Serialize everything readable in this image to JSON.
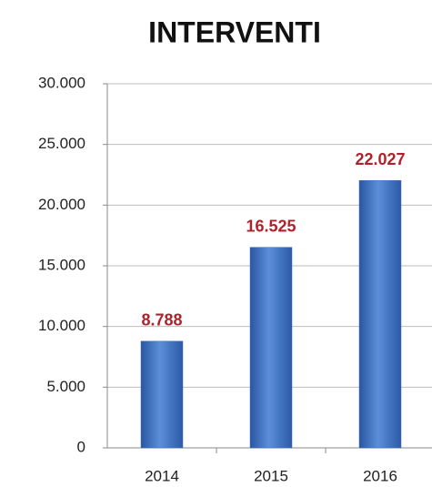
{
  "chart_data": {
    "type": "bar",
    "title": "INTERVENTI",
    "categories": [
      "2014",
      "2015",
      "2016"
    ],
    "values": [
      8788,
      16525,
      22027
    ],
    "value_labels": [
      "8.788",
      "16.525",
      "22.027"
    ],
    "color": "#3a6fc0",
    "ylim": [
      0,
      30000
    ],
    "yticks": [
      0,
      {
        "value": 5000,
        "label": "5.000"
      },
      {
        "value": 10000,
        "label": "10.000"
      },
      {
        "value": 15000,
        "label": "15.000"
      },
      {
        "value": 20000,
        "label": "20.000"
      },
      {
        "value": 25000,
        "label": "25.000"
      },
      {
        "value": 30000,
        "label": "30.000"
      }
    ],
    "grid": true
  }
}
